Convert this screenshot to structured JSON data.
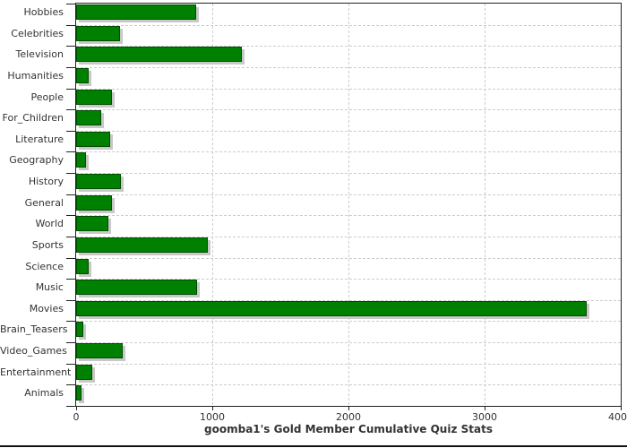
{
  "chart_data": {
    "type": "bar",
    "orientation": "horizontal",
    "title": "goomba1's Gold Member Cumulative Quiz Stats",
    "categories": [
      "Hobbies",
      "Celebrities",
      "Television",
      "Humanities",
      "People",
      "For_Children",
      "Literature",
      "Geography",
      "History",
      "General",
      "World",
      "Sports",
      "Science",
      "Music",
      "Movies",
      "Brain_Teasers",
      "Video_Games",
      "Entertainment",
      "Animals"
    ],
    "values": [
      880,
      320,
      1220,
      90,
      260,
      185,
      250,
      70,
      330,
      265,
      235,
      965,
      90,
      885,
      3750,
      50,
      340,
      120,
      40
    ],
    "x_ticks": [
      0,
      1000,
      2000,
      3000,
      4000
    ],
    "xlim": [
      0,
      4000
    ],
    "xlabel": "",
    "ylabel": "",
    "grid": "dashed horizontal and vertical gridlines",
    "legend_position": "none",
    "colors": {
      "bar_fill": "#008000",
      "bar_edge": "#004d00",
      "bar_shadow": "#c8c8c8",
      "grid": "#cccccc",
      "axis": "#222222",
      "text": "#333333",
      "background": "#ffffff",
      "bottom_frame": "#111111"
    }
  }
}
